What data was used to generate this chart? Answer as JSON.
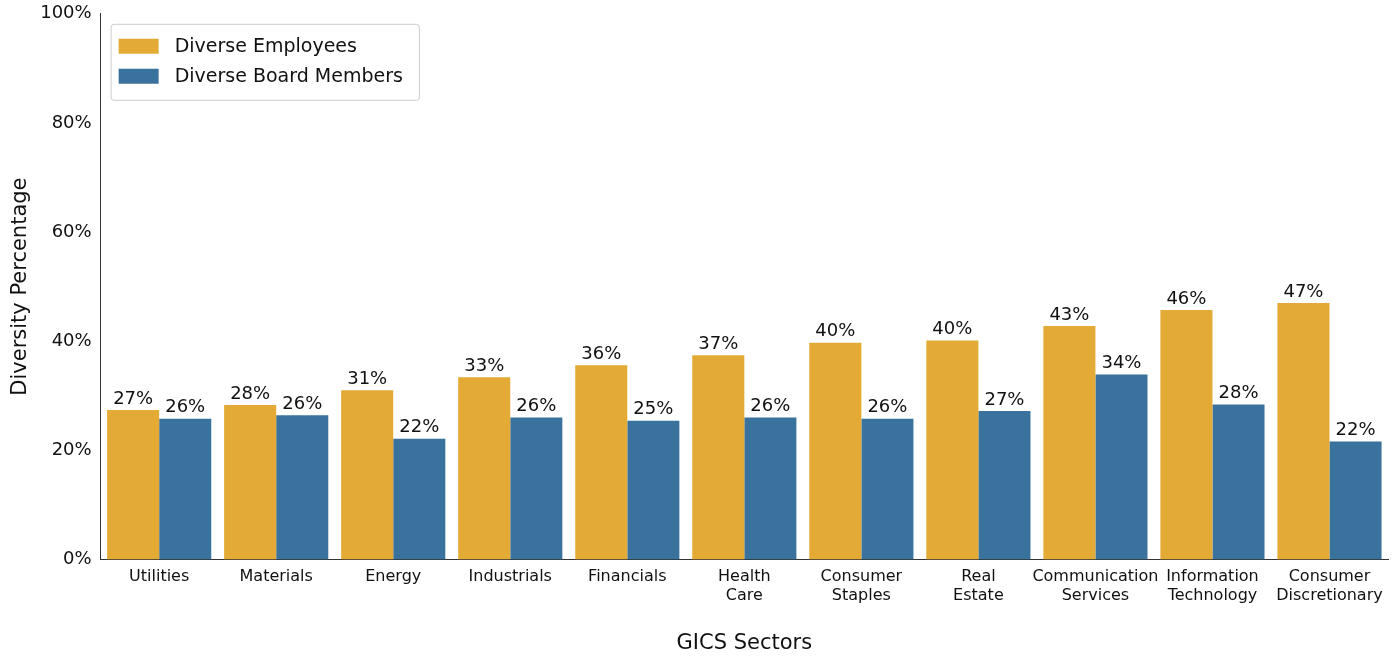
{
  "chart_data": {
    "type": "bar",
    "xlabel": "GICS Sectors",
    "ylabel": "Diversity Percentage",
    "categories": [
      "Utilities",
      "Materials",
      "Energy",
      "Industrials",
      "Financials",
      "Health Care",
      "Consumer Staples",
      "Real Estate",
      "Communication Services",
      "Information Technology",
      "Consumer Discretionary"
    ],
    "series": [
      {
        "name": "Diverse Employees",
        "color": "#e3ab35",
        "values": [
          27.4,
          28.3,
          31.0,
          33.4,
          35.6,
          37.4,
          39.7,
          40.1,
          42.8,
          45.7,
          47.0
        ],
        "value_labels": [
          "27%",
          "28%",
          "31%",
          "33%",
          "36%",
          "37%",
          "40%",
          "40%",
          "43%",
          "46%",
          "47%"
        ]
      },
      {
        "name": "Diverse Board Members",
        "color": "#3a729e",
        "values": [
          25.8,
          26.4,
          22.1,
          26.0,
          25.4,
          26.0,
          25.8,
          27.2,
          33.9,
          28.4,
          21.6
        ],
        "value_labels": [
          "26%",
          "26%",
          "22%",
          "26%",
          "25%",
          "26%",
          "26%",
          "27%",
          "34%",
          "28%",
          "22%"
        ]
      }
    ],
    "ylim": [
      0,
      100
    ],
    "yticks": [
      {
        "value": 0,
        "label": "0%"
      },
      {
        "value": 20,
        "label": "20%"
      },
      {
        "value": 40,
        "label": "40%"
      },
      {
        "value": 60,
        "label": "60%"
      },
      {
        "value": 80,
        "label": "80%"
      },
      {
        "value": 100,
        "label": "100%"
      }
    ],
    "grid": false,
    "legend": "top left"
  }
}
